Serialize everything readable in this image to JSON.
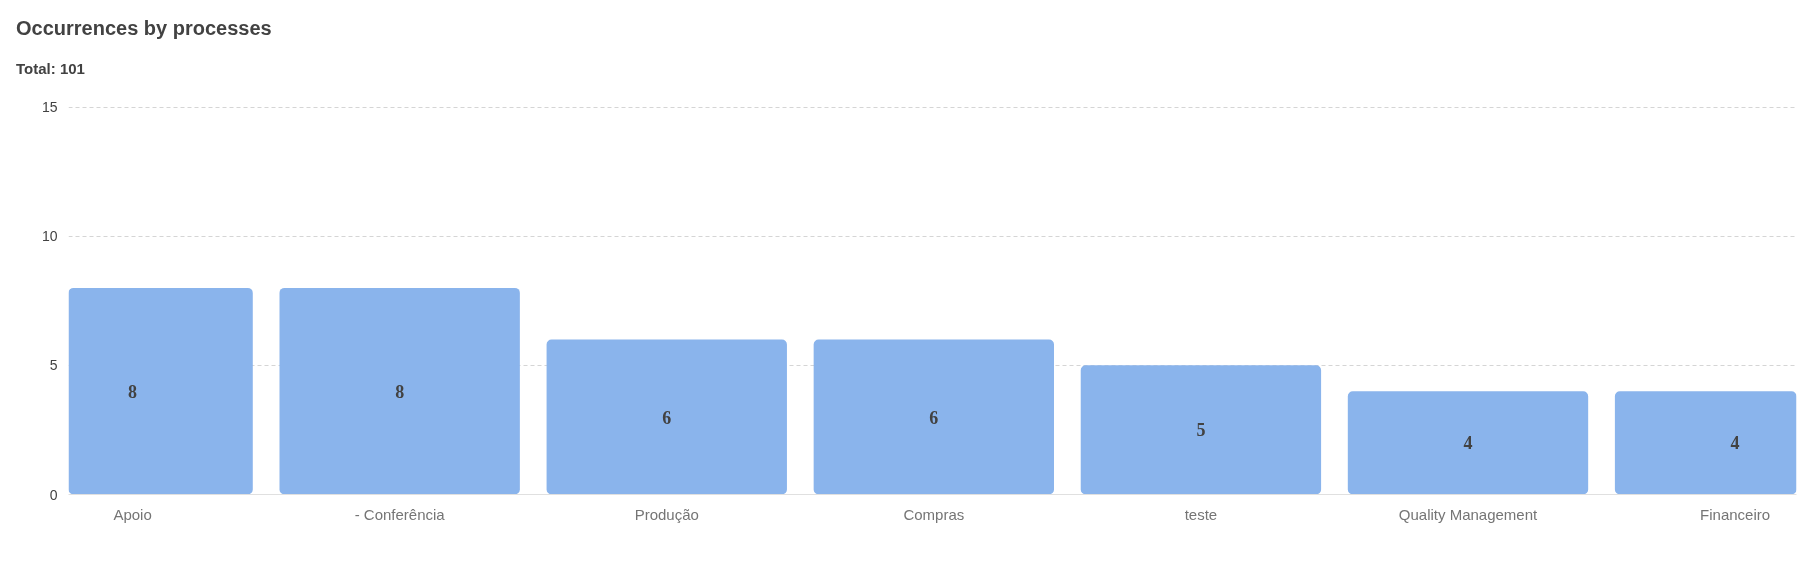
{
  "chart_data": {
    "type": "bar",
    "title": "Occurrences by processes",
    "subtitle": "Total: 101",
    "categories": [
      "Apoio",
      "- Conferência",
      "Produção",
      "Compras",
      "teste",
      "Quality Management",
      "Financeiro"
    ],
    "values": [
      8,
      8,
      6,
      6,
      5,
      4,
      4
    ],
    "color": "#8ab4ec",
    "ylim": [
      0,
      15
    ],
    "yticks": [
      0,
      5,
      10,
      15
    ],
    "grid": "y",
    "data_labels": true
  }
}
